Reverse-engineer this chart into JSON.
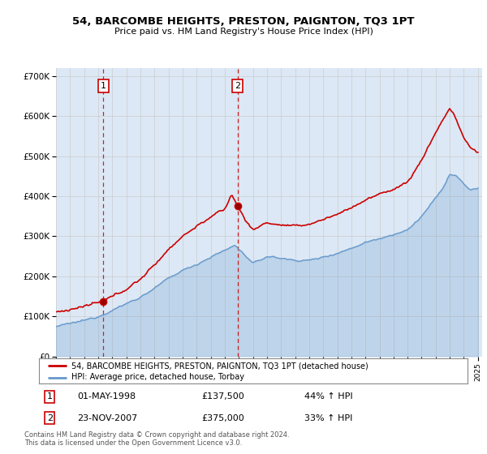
{
  "title1": "54, BARCOMBE HEIGHTS, PRESTON, PAIGNTON, TQ3 1PT",
  "title2": "Price paid vs. HM Land Registry's House Price Index (HPI)",
  "legend_line1": "54, BARCOMBE HEIGHTS, PRESTON, PAIGNTON, TQ3 1PT (detached house)",
  "legend_line2": "HPI: Average price, detached house, Torbay",
  "annotation1": {
    "num": "1",
    "date": "01-MAY-1998",
    "price": "£137,500",
    "pct": "44% ↑ HPI"
  },
  "annotation2": {
    "num": "2",
    "date": "23-NOV-2007",
    "price": "£375,000",
    "pct": "33% ↑ HPI"
  },
  "footnote": "Contains HM Land Registry data © Crown copyright and database right 2024.\nThis data is licensed under the Open Government Licence v3.0.",
  "red_color": "#cc0000",
  "blue_color": "#6699cc",
  "background_color": "#dce8f5",
  "ylim": [
    0,
    720000
  ],
  "yticks": [
    0,
    100000,
    200000,
    300000,
    400000,
    500000,
    600000,
    700000
  ],
  "sale1_x": 1998.37,
  "sale1_y": 137500,
  "sale2_x": 2007.9,
  "sale2_y": 375000,
  "xlim_left": 1995.0,
  "xlim_right": 2025.3
}
